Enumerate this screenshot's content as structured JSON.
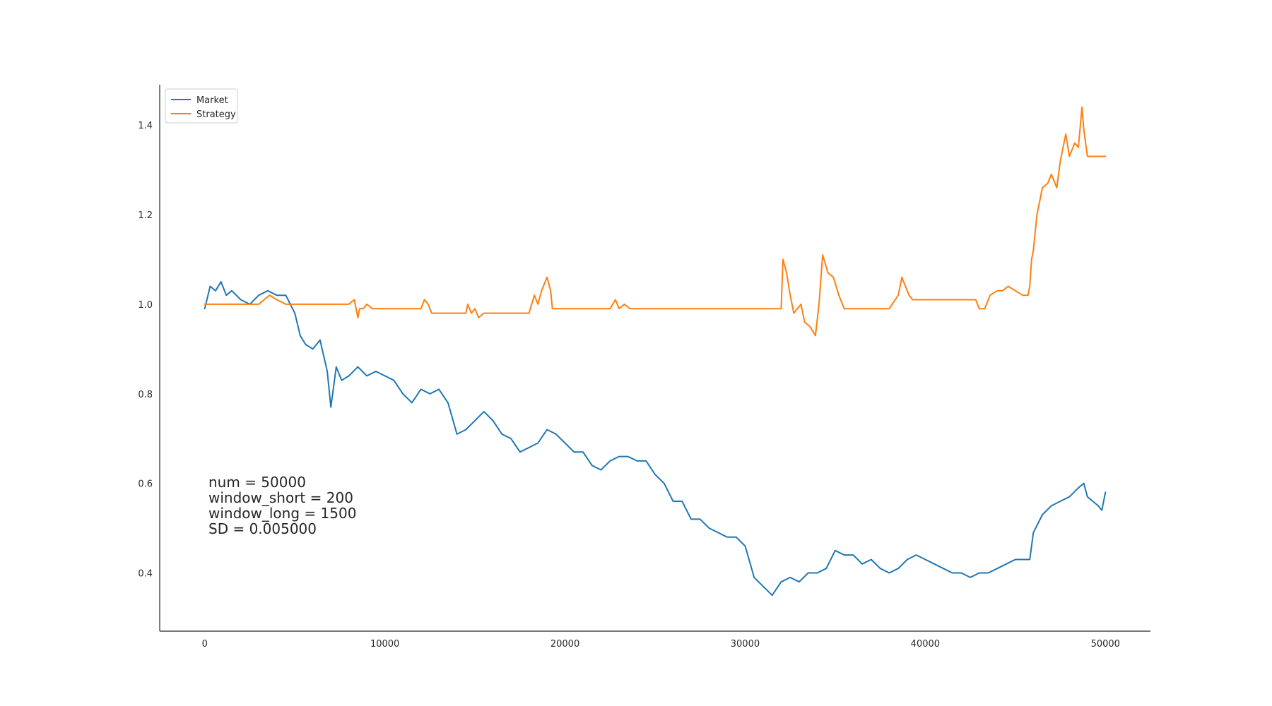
{
  "chart_data": {
    "type": "line",
    "title": "",
    "xlabel": "",
    "ylabel": "",
    "xlim": [
      -2500,
      52500
    ],
    "ylim": [
      0.27,
      1.49
    ],
    "xticks": [
      0,
      10000,
      20000,
      30000,
      40000,
      50000
    ],
    "xtick_labels": [
      "0",
      "10000",
      "20000",
      "30000",
      "40000",
      "50000"
    ],
    "yticks": [
      0.4,
      0.6,
      0.8,
      1.0,
      1.2,
      1.4
    ],
    "ytick_labels": [
      "0.4",
      "0.6",
      "0.8",
      "1.0",
      "1.2",
      "1.4"
    ],
    "grid": false,
    "legend_position": "upper-left",
    "annotation_lines": [
      "num = 50000",
      "window_short = 200",
      "window_long = 1500",
      "SD = 0.005000"
    ],
    "series": [
      {
        "name": "Market",
        "color": "#1f77b4",
        "x": [
          0,
          300,
          600,
          900,
          1200,
          1500,
          2000,
          2500,
          3000,
          3500,
          4000,
          4500,
          5000,
          5300,
          5600,
          6000,
          6400,
          6800,
          7000,
          7300,
          7600,
          8000,
          8500,
          9000,
          9500,
          10000,
          10500,
          11000,
          11500,
          12000,
          12500,
          13000,
          13500,
          14000,
          14500,
          15000,
          15500,
          16000,
          16500,
          17000,
          17500,
          18000,
          18500,
          19000,
          19500,
          20000,
          20500,
          21000,
          21500,
          22000,
          22500,
          23000,
          23500,
          24000,
          24500,
          25000,
          25500,
          26000,
          26500,
          27000,
          27500,
          28000,
          28500,
          29000,
          29500,
          30000,
          30500,
          31000,
          31500,
          32000,
          32500,
          33000,
          33500,
          34000,
          34500,
          35000,
          35500,
          36000,
          36500,
          37000,
          37500,
          38000,
          38500,
          39000,
          39500,
          40000,
          40500,
          41000,
          41500,
          42000,
          42500,
          43000,
          43500,
          44000,
          44500,
          45000,
          45500,
          45800,
          46000,
          46500,
          47000,
          47500,
          48000,
          48500,
          48800,
          49000,
          49300,
          49600,
          49800,
          50000
        ],
        "y": [
          0.99,
          1.04,
          1.03,
          1.05,
          1.02,
          1.03,
          1.01,
          1.0,
          1.02,
          1.03,
          1.02,
          1.02,
          0.98,
          0.93,
          0.91,
          0.9,
          0.92,
          0.85,
          0.77,
          0.86,
          0.83,
          0.84,
          0.86,
          0.84,
          0.85,
          0.84,
          0.83,
          0.8,
          0.78,
          0.81,
          0.8,
          0.81,
          0.78,
          0.71,
          0.72,
          0.74,
          0.76,
          0.74,
          0.71,
          0.7,
          0.67,
          0.68,
          0.69,
          0.72,
          0.71,
          0.69,
          0.67,
          0.67,
          0.64,
          0.63,
          0.65,
          0.66,
          0.66,
          0.65,
          0.65,
          0.62,
          0.6,
          0.56,
          0.56,
          0.52,
          0.52,
          0.5,
          0.49,
          0.48,
          0.48,
          0.46,
          0.39,
          0.37,
          0.35,
          0.38,
          0.39,
          0.38,
          0.4,
          0.4,
          0.41,
          0.45,
          0.44,
          0.44,
          0.42,
          0.43,
          0.41,
          0.4,
          0.41,
          0.43,
          0.44,
          0.43,
          0.42,
          0.41,
          0.4,
          0.4,
          0.39,
          0.4,
          0.4,
          0.41,
          0.42,
          0.43,
          0.43,
          0.43,
          0.49,
          0.53,
          0.55,
          0.56,
          0.57,
          0.59,
          0.6,
          0.57,
          0.56,
          0.55,
          0.54,
          0.58
        ]
      },
      {
        "name": "Strategy",
        "color": "#ff7f0e",
        "x": [
          0,
          2000,
          3000,
          3300,
          3600,
          4000,
          4500,
          5000,
          6000,
          7000,
          8000,
          8300,
          8400,
          8500,
          8600,
          8800,
          9000,
          9300,
          9600,
          10000,
          11000,
          12000,
          12200,
          12400,
          12600,
          13000,
          14000,
          14500,
          14600,
          14800,
          15000,
          15200,
          15500,
          16000,
          17000,
          18000,
          18300,
          18500,
          18700,
          18900,
          19000,
          19200,
          19300,
          19500,
          20000,
          21000,
          22000,
          22500,
          22800,
          23000,
          23300,
          23600,
          24000,
          25000,
          27000,
          29000,
          31000,
          32000,
          32100,
          32300,
          32500,
          32700,
          32900,
          33100,
          33300,
          33600,
          33900,
          34100,
          34300,
          34600,
          34900,
          35200,
          35500,
          35800,
          36000,
          37000,
          38000,
          38500,
          38700,
          38900,
          39100,
          39300,
          39600,
          40000,
          41000,
          42000,
          42800,
          43000,
          43300,
          43600,
          44000,
          44300,
          44600,
          45000,
          45400,
          45700,
          45800,
          45900,
          46000,
          46200,
          46500,
          46800,
          47000,
          47300,
          47500,
          47800,
          48000,
          48300,
          48500,
          48700,
          48800,
          48900,
          49000,
          49200,
          49500,
          50000
        ],
        "y": [
          1.0,
          1.0,
          1.0,
          1.01,
          1.02,
          1.01,
          1.0,
          1.0,
          1.0,
          1.0,
          1.0,
          1.01,
          0.99,
          0.97,
          0.99,
          0.99,
          1.0,
          0.99,
          0.99,
          0.99,
          0.99,
          0.99,
          1.01,
          1.0,
          0.98,
          0.98,
          0.98,
          0.98,
          1.0,
          0.98,
          0.99,
          0.97,
          0.98,
          0.98,
          0.98,
          0.98,
          1.02,
          1.0,
          1.03,
          1.05,
          1.06,
          1.03,
          0.99,
          0.99,
          0.99,
          0.99,
          0.99,
          0.99,
          1.01,
          0.99,
          1.0,
          0.99,
          0.99,
          0.99,
          0.99,
          0.99,
          0.99,
          0.99,
          1.1,
          1.07,
          1.02,
          0.98,
          0.99,
          1.0,
          0.96,
          0.95,
          0.93,
          1.0,
          1.11,
          1.07,
          1.06,
          1.02,
          0.99,
          0.99,
          0.99,
          0.99,
          0.99,
          1.02,
          1.06,
          1.04,
          1.02,
          1.01,
          1.01,
          1.01,
          1.01,
          1.01,
          1.01,
          0.99,
          0.99,
          1.02,
          1.03,
          1.03,
          1.04,
          1.03,
          1.02,
          1.02,
          1.04,
          1.1,
          1.12,
          1.2,
          1.26,
          1.27,
          1.29,
          1.26,
          1.32,
          1.38,
          1.33,
          1.36,
          1.35,
          1.44,
          1.39,
          1.36,
          1.33,
          1.33,
          1.33,
          1.33
        ]
      }
    ]
  }
}
